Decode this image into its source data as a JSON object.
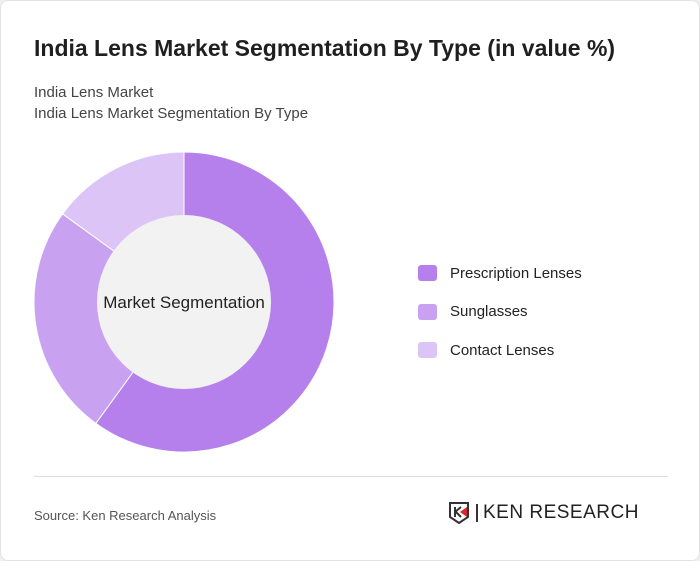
{
  "title": "India Lens Market Segmentation By Type (in value %)",
  "subtitle1": "India Lens Market",
  "subtitle2": "India Lens Market Segmentation By Type",
  "source": "Source: Ken Research Analysis",
  "logo_text": "KEN RESEARCH",
  "chart_data": {
    "type": "pie",
    "variant": "donut",
    "center_label": "Market Segmentation",
    "categories": [
      "Prescription Lenses",
      "Sunglasses",
      "Contact Lenses"
    ],
    "values": [
      60,
      25,
      15
    ],
    "colors": [
      "#b580ec",
      "#c9a1f1",
      "#dcc4f7"
    ],
    "legend_position": "right"
  }
}
